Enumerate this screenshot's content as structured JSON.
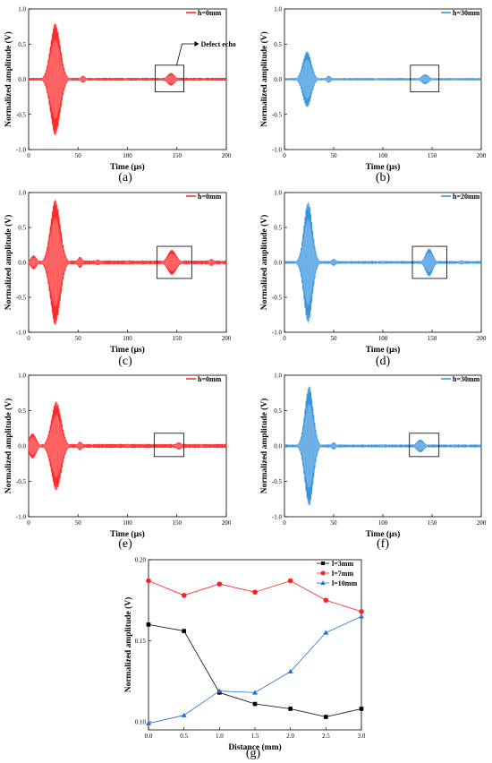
{
  "chart_data": [
    {
      "type": "line",
      "caption": "(a)",
      "waveform": true,
      "xlabel": "Time (μs)",
      "ylabel": "Normalized amplitude (V)",
      "xlim": [
        0,
        200
      ],
      "ylim": [
        -1.0,
        1.0
      ],
      "xticks": [
        0,
        50,
        100,
        150,
        200
      ],
      "yticks": [
        "-1.0",
        "-0.5",
        "0.0",
        "0.5",
        "1.0"
      ],
      "color": "#ff2020",
      "series": [
        {
          "name": "h=0mm",
          "pulses": [
            [
              27,
              0.8,
              7
            ],
            [
              55,
              0.05,
              3
            ],
            [
              100,
              0.02,
              2
            ],
            [
              144,
              0.09,
              5
            ],
            [
              170,
              0.02,
              2
            ]
          ],
          "noise": 0.015
        }
      ],
      "defect_box": [
        128,
        157,
        -0.18,
        0.2
      ],
      "annotations": [
        "Defect echo"
      ]
    },
    {
      "type": "line",
      "caption": "(b)",
      "waveform": true,
      "xlabel": "Time (μs)",
      "ylabel": "Normalized amplitude (V)",
      "xlim": [
        0,
        200
      ],
      "ylim": [
        -1.0,
        1.0
      ],
      "xticks": [
        0,
        50,
        100,
        150,
        200
      ],
      "yticks": [
        "-1.0",
        "-0.5",
        "0.0",
        "0.5",
        "1.0"
      ],
      "color": "#2f8fdc",
      "series": [
        {
          "name": "h=30mm",
          "pulses": [
            [
              23,
              0.4,
              6
            ],
            [
              45,
              0.05,
              3
            ],
            [
              95,
              0.015,
              2
            ],
            [
              143,
              0.07,
              5
            ],
            [
              172,
              0.015,
              2
            ]
          ],
          "noise": 0.012
        }
      ],
      "defect_box": [
        128,
        157,
        -0.18,
        0.2
      ]
    },
    {
      "type": "line",
      "caption": "(c)",
      "waveform": true,
      "xlabel": "Time (μs)",
      "ylabel": "Normalized amplitude (V)",
      "xlim": [
        0,
        200
      ],
      "ylim": [
        -1.0,
        1.0
      ],
      "xticks": [
        0,
        50,
        100,
        150,
        200
      ],
      "yticks": [
        "-1.0",
        "-0.5",
        "0.0",
        "0.5",
        "1.0"
      ],
      "color": "#ff2020",
      "series": [
        {
          "name": "h=0mm",
          "pulses": [
            [
              5,
              0.1,
              4
            ],
            [
              27,
              0.9,
              7
            ],
            [
              52,
              0.08,
              3
            ],
            [
              70,
              0.04,
              3
            ],
            [
              100,
              0.03,
              2
            ],
            [
              145,
              0.18,
              6
            ],
            [
              185,
              0.05,
              3
            ]
          ],
          "noise": 0.02
        }
      ],
      "defect_box": [
        130,
        165,
        -0.23,
        0.23
      ]
    },
    {
      "type": "line",
      "caption": "(d)",
      "waveform": true,
      "xlabel": "Time (μs)",
      "ylabel": "Normalized amplitude (V)",
      "xlim": [
        0,
        200
      ],
      "ylim": [
        -1.0,
        1.0
      ],
      "xticks": [
        0,
        50,
        100,
        150,
        200
      ],
      "yticks": [
        "-1.0",
        "-0.5",
        "0.0",
        "0.5",
        "1.0"
      ],
      "color": "#2f8fdc",
      "series": [
        {
          "name": "h=20mm",
          "pulses": [
            [
              24,
              0.87,
              6
            ],
            [
              50,
              0.05,
              3
            ],
            [
              100,
              0.02,
              2
            ],
            [
              147,
              0.2,
              5
            ],
            [
              180,
              0.03,
              3
            ]
          ],
          "noise": 0.015
        }
      ],
      "defect_box": [
        130,
        165,
        -0.23,
        0.23
      ]
    },
    {
      "type": "line",
      "caption": "(e)",
      "waveform": true,
      "xlabel": "Time (μs)",
      "ylabel": "Normalized amplitude (V)",
      "xlim": [
        0,
        200
      ],
      "ylim": [
        -1.0,
        1.0
      ],
      "xticks": [
        0,
        50,
        100,
        150,
        200
      ],
      "yticks": [
        "-1.0",
        "-0.5",
        "0.0",
        "0.5",
        "1.0"
      ],
      "color": "#ff2020",
      "series": [
        {
          "name": "h=0mm",
          "pulses": [
            [
              4,
              0.18,
              5
            ],
            [
              28,
              0.63,
              7
            ],
            [
              52,
              0.06,
              3
            ],
            [
              100,
              0.03,
              2
            ],
            [
              152,
              0.05,
              4
            ],
            [
              175,
              0.02,
              2
            ]
          ],
          "noise": 0.02
        }
      ],
      "defect_box": [
        127,
        157,
        -0.15,
        0.18
      ]
    },
    {
      "type": "line",
      "caption": "(f)",
      "waveform": true,
      "xlabel": "Time (μs)",
      "ylabel": "Normalized amplitude (V)",
      "xlim": [
        0,
        200
      ],
      "ylim": [
        -1.0,
        1.0
      ],
      "xticks": [
        0,
        50,
        100,
        150,
        200
      ],
      "yticks": [
        "-1.0",
        "-0.5",
        "0.0",
        "0.5",
        "1.0"
      ],
      "color": "#2f8fdc",
      "series": [
        {
          "name": "h=30mm",
          "pulses": [
            [
              25,
              0.85,
              6
            ],
            [
              50,
              0.05,
              3
            ],
            [
              100,
              0.02,
              2
            ],
            [
              138,
              0.09,
              5
            ],
            [
              172,
              0.02,
              2
            ]
          ],
          "noise": 0.015
        }
      ],
      "defect_box": [
        127,
        157,
        -0.15,
        0.18
      ]
    },
    {
      "type": "line",
      "caption": "(g)",
      "xlabel": "Distance (mm)",
      "ylabel": "Normalized amplitude (V)",
      "xlim": [
        0,
        3.0
      ],
      "ylim": [
        0.095,
        0.2
      ],
      "xticks": [
        "0.0",
        "0.5",
        "1.0",
        "1.5",
        "2.0",
        "2.5",
        "3.0"
      ],
      "yticks": [
        "0.10",
        "0.15",
        "0.20"
      ],
      "x": [
        0.0,
        0.5,
        1.0,
        1.5,
        2.0,
        2.5,
        3.0
      ],
      "series": [
        {
          "name": "l=3mm",
          "color": "#000000",
          "marker": "square",
          "values": [
            0.16,
            0.156,
            0.118,
            0.111,
            0.108,
            0.103,
            0.108
          ]
        },
        {
          "name": "l=7mm",
          "color": "#ff2020",
          "marker": "circle",
          "values": [
            0.187,
            0.178,
            0.185,
            0.18,
            0.187,
            0.175,
            0.168
          ]
        },
        {
          "name": "l=10mm",
          "color": "#2070e0",
          "marker": "triangle",
          "values": [
            0.099,
            0.104,
            0.119,
            0.118,
            0.131,
            0.155,
            0.165
          ]
        }
      ],
      "legend": "top-right"
    }
  ]
}
